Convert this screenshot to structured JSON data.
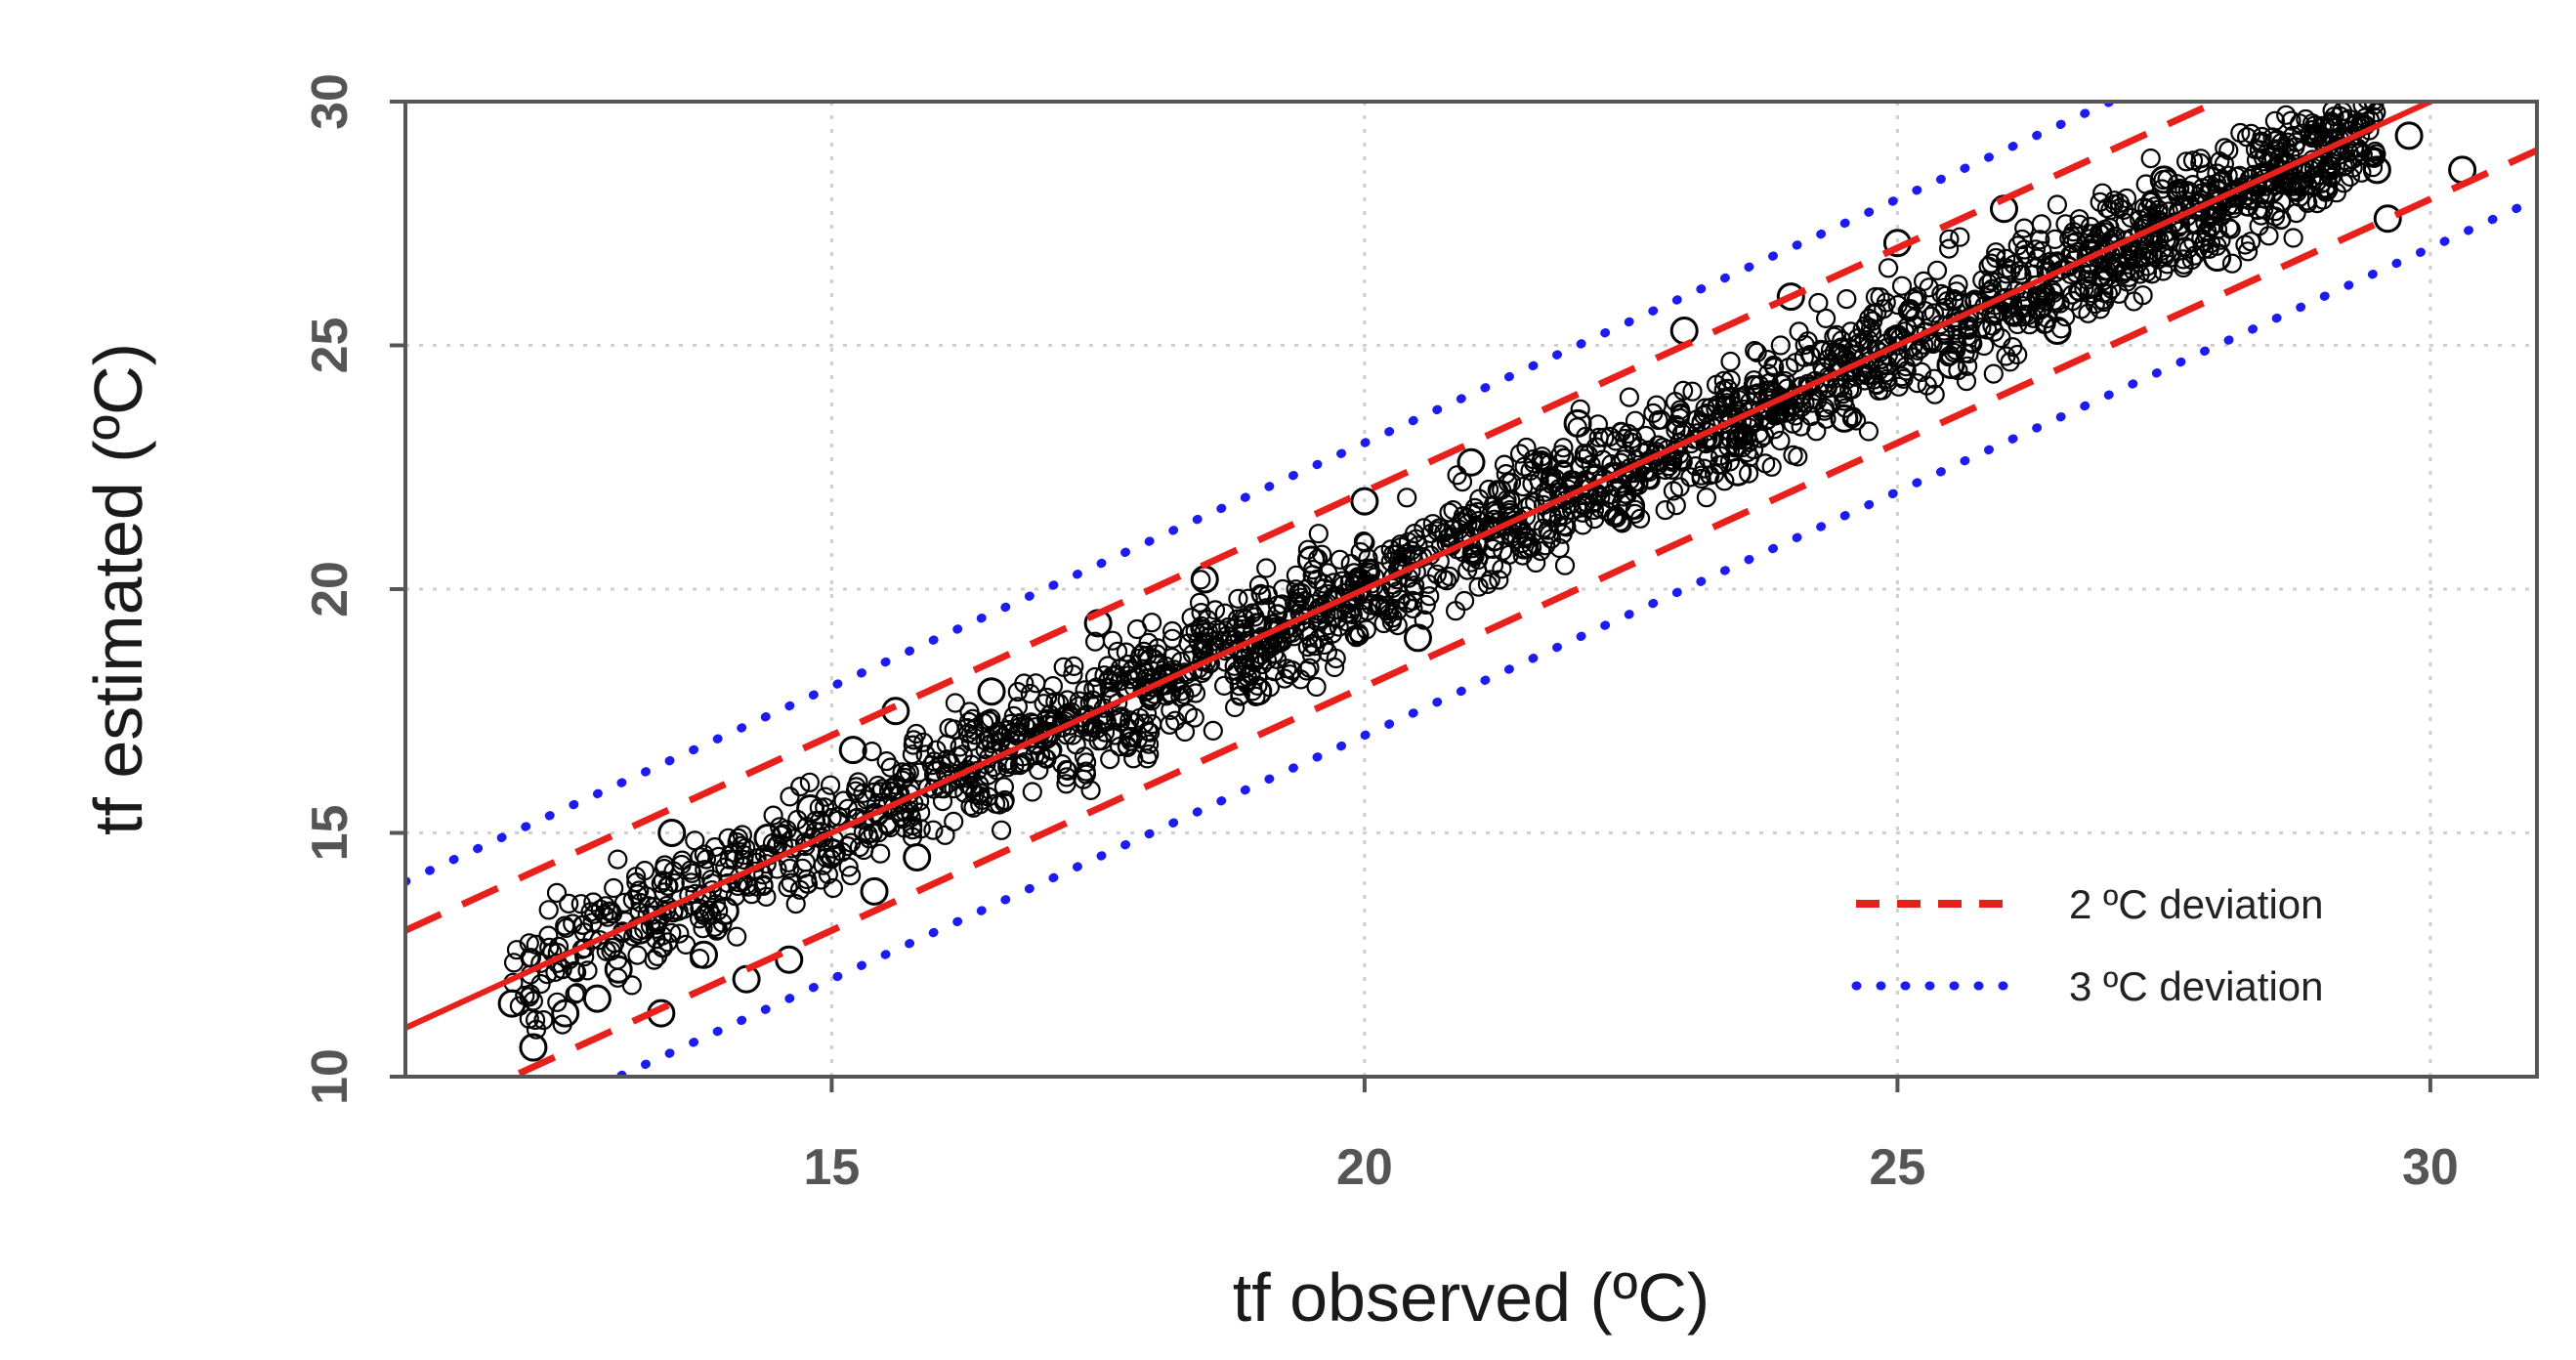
{
  "chart_data": {
    "type": "scatter",
    "xlabel": "tf observed (ºC)",
    "ylabel": "tf estimated (ºC)",
    "xlim": [
      11,
      31
    ],
    "ylim": [
      10,
      30
    ],
    "xticks": [
      15,
      20,
      25,
      30
    ],
    "yticks": [
      10,
      15,
      20,
      25,
      30
    ],
    "grid": true,
    "legend_position": "bottom-right",
    "series": [
      {
        "kind": "points",
        "marker": "open-circle",
        "color": "#000000",
        "points": [
          [
            12.0,
            11.5
          ],
          [
            12.2,
            10.6
          ],
          [
            12.5,
            11.3
          ],
          [
            12.8,
            11.6
          ],
          [
            13.0,
            12.2
          ],
          [
            13.2,
            13.0
          ],
          [
            13.4,
            11.3
          ],
          [
            13.5,
            15.0
          ],
          [
            13.8,
            12.5
          ],
          [
            14.0,
            13.4
          ],
          [
            14.2,
            12.0
          ],
          [
            14.4,
            14.9
          ],
          [
            14.6,
            12.4
          ],
          [
            14.8,
            15.5
          ],
          [
            15.0,
            14.6
          ],
          [
            15.2,
            16.7
          ],
          [
            15.4,
            13.8
          ],
          [
            15.6,
            17.5
          ],
          [
            15.8,
            14.5
          ],
          [
            16.0,
            16.2
          ],
          [
            16.5,
            17.9
          ],
          [
            17.0,
            17.0
          ],
          [
            17.5,
            19.3
          ],
          [
            18.0,
            18.5
          ],
          [
            18.5,
            20.2
          ],
          [
            19.0,
            17.9
          ],
          [
            19.5,
            20.6
          ],
          [
            20.0,
            21.8
          ],
          [
            20.5,
            19.0
          ],
          [
            21.0,
            22.6
          ],
          [
            21.5,
            20.9
          ],
          [
            22.0,
            23.4
          ],
          [
            22.5,
            21.7
          ],
          [
            23.0,
            25.3
          ],
          [
            23.5,
            22.4
          ],
          [
            24.0,
            26.0
          ],
          [
            24.5,
            23.5
          ],
          [
            25.0,
            27.1
          ],
          [
            25.5,
            24.6
          ],
          [
            26.0,
            27.8
          ],
          [
            26.5,
            25.3
          ],
          [
            27.0,
            27.0
          ],
          [
            27.5,
            28.4
          ],
          [
            28.0,
            26.8
          ],
          [
            28.5,
            28.2
          ],
          [
            29.0,
            28.3
          ],
          [
            29.5,
            28.6
          ],
          [
            29.8,
            29.3
          ],
          [
            29.6,
            27.6
          ],
          [
            30.3,
            28.6
          ]
        ]
      },
      {
        "kind": "line",
        "style": "solid",
        "color": "#e8201c",
        "offset": 0
      },
      {
        "kind": "line",
        "style": "dashed",
        "color": "#e8201c",
        "offset": 2,
        "name": "2 ºC deviation"
      },
      {
        "kind": "line",
        "style": "dashed",
        "color": "#e8201c",
        "offset": -2
      },
      {
        "kind": "line",
        "style": "dotted",
        "color": "#1c1cf0",
        "offset": 3,
        "name": "3 ºC deviation"
      },
      {
        "kind": "line",
        "style": "dotted",
        "color": "#1c1cf0",
        "offset": -3
      }
    ],
    "legend": [
      {
        "label": "2 ºC deviation",
        "style": "dashed",
        "color": "#e8201c"
      },
      {
        "label": "3 ºC deviation",
        "style": "dotted",
        "color": "#1c1cf0"
      }
    ]
  }
}
